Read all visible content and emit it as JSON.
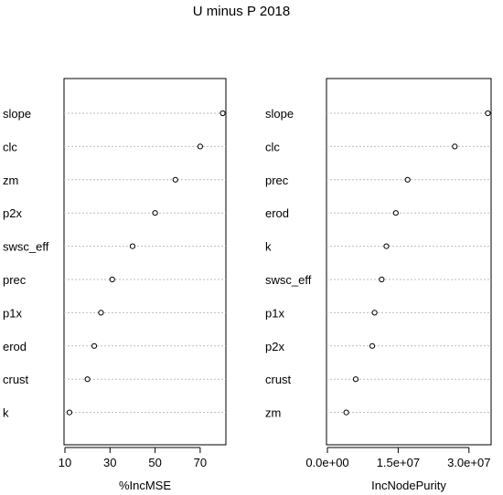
{
  "figure": {
    "title": "U minus P 2018"
  },
  "chart_data": [
    {
      "type": "dot",
      "xlabel": "%IncMSE",
      "xlim": [
        10,
        81
      ],
      "xticks": [
        10,
        30,
        50,
        70
      ],
      "tick_labels": [
        "10",
        "30",
        "50",
        "70"
      ],
      "grid": "dotted horizontal guides",
      "categories": [
        "slope",
        "clc",
        "zm",
        "p2x",
        "swsc_eff",
        "prec",
        "p1x",
        "erod",
        "crust",
        "k"
      ],
      "values": [
        80,
        70,
        59,
        50,
        40,
        31,
        26,
        23,
        20,
        12
      ]
    },
    {
      "type": "dot",
      "xlabel": "IncNodePurity",
      "xlim": [
        0,
        34500000
      ],
      "xticks": [
        0,
        15000000,
        30000000
      ],
      "tick_labels": [
        "0.0e+00",
        "1.5e+07",
        "3.0e+07"
      ],
      "grid": "dotted horizontal guides",
      "categories": [
        "slope",
        "clc",
        "prec",
        "erod",
        "k",
        "swsc_eff",
        "p1x",
        "p2x",
        "crust",
        "zm"
      ],
      "values": [
        34000000,
        27000000,
        17000000,
        14500000,
        12500000,
        11500000,
        10000000,
        9500000,
        6000000,
        4000000
      ]
    }
  ]
}
